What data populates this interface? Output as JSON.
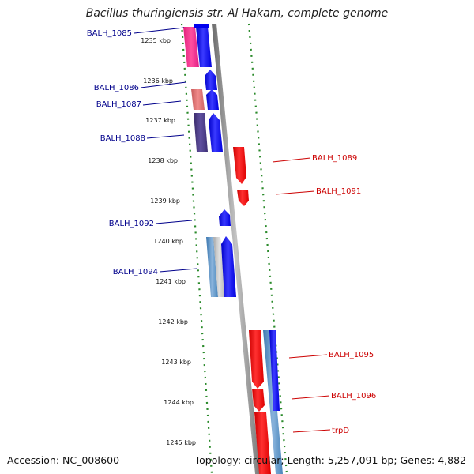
{
  "title": "Bacillus thuringiensis str. Al Hakam, complete genome",
  "footer": {
    "accession": "Accession: NC_008600",
    "topology": "Topology: circular; Length: 5,257,091 bp; Genes: 4,882"
  },
  "colors": {
    "left_label": "#00008b",
    "right_label": "#cc0000",
    "tick_dots": "#2a8a2a",
    "backbone": "#8c8c8c",
    "forward_gene": "#0000ff",
    "reverse_gene": "#ff0000"
  },
  "ticks": [
    "1235 kbp",
    "1236 kbp",
    "1237 kbp",
    "1238 kbp",
    "1239 kbp",
    "1240 kbp",
    "1241 kbp",
    "1242 kbp",
    "1243 kbp",
    "1244 kbp",
    "1245 kbp"
  ],
  "gene_labels": {
    "left": [
      "BALH_1085",
      "BALH_1086",
      "BALH_1087",
      "BALH_1088",
      "BALH_1092",
      "BALH_1094"
    ],
    "right": [
      "BALH_1089",
      "BALH_1091",
      "BALH_1095",
      "BALH_1096",
      "trpD"
    ]
  }
}
